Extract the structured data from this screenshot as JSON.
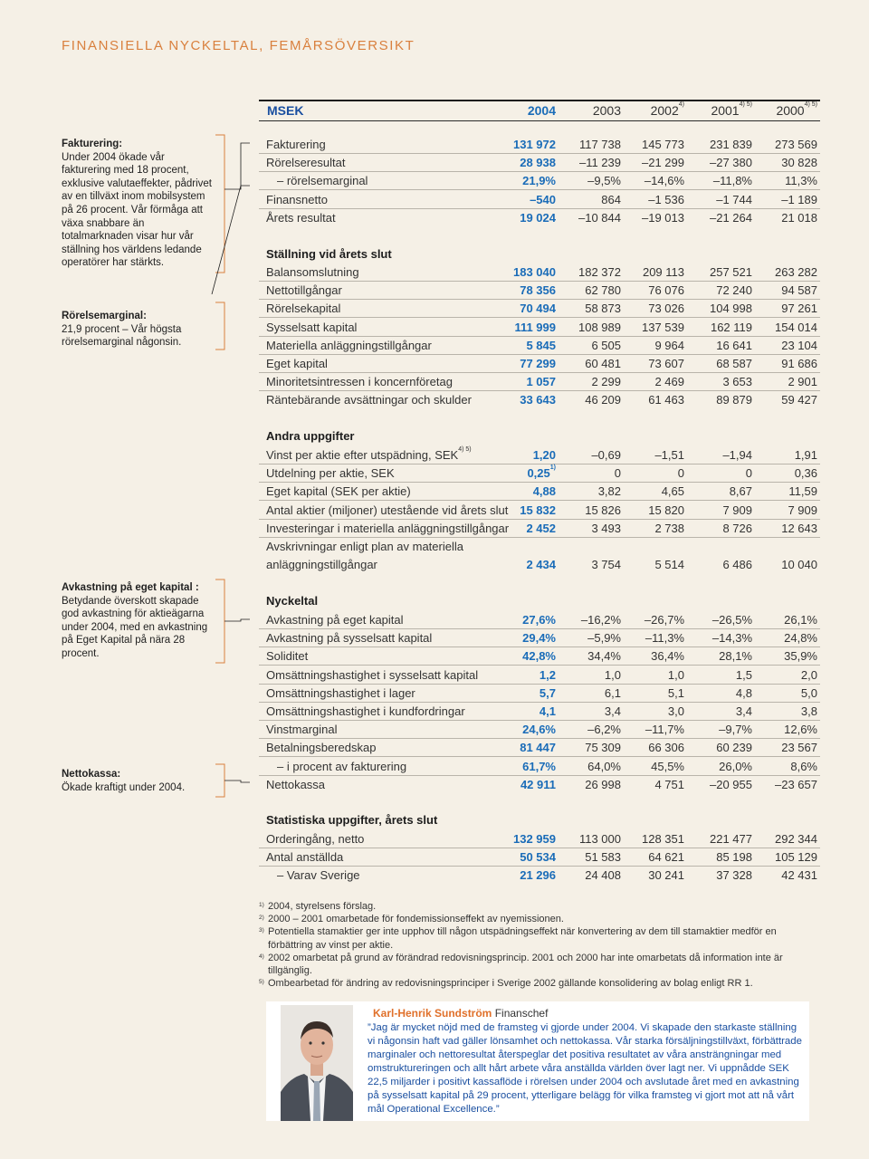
{
  "page_title": "FINANSIELLA NYCKELTAL, FEMÅRSÖVERSIKT",
  "header": {
    "msek": "MSEK",
    "years": [
      {
        "label": "2004",
        "sup": ""
      },
      {
        "label": "2003",
        "sup": ""
      },
      {
        "label": "2002",
        "sup": "4)"
      },
      {
        "label": "2001",
        "sup": "4) 5)"
      },
      {
        "label": "2000",
        "sup": "4) 5)"
      }
    ]
  },
  "side_notes": [
    {
      "heading": "Fakturering:",
      "text": "Under 2004 ökade vår fakturering med 18 procent, exklusive valutaeffekter, pådrivet av en tillväxt inom mobilsystem på 26 procent. Vår förmåga att växa snabbare än totalmarknaden visar hur vår ställning hos världens ledande operatörer har stärkts."
    },
    {
      "heading": "Rörelsemarginal:",
      "text": "21,9 procent – Vår högsta rörelsemarginal någonsin."
    },
    {
      "heading": "Avkastning på eget kapital :",
      "text": "Betydande överskott skapade god avkastning för aktieägarna under 2004, med en avkastning på Eget Kapital på nära 28 procent."
    },
    {
      "heading": "Nettokassa:",
      "text": "Ökade kraftigt under 2004."
    }
  ],
  "section_titles": {
    "stallning": "Ställning vid årets slut",
    "andra": "Andra uppgifter",
    "nyckeltal": "Nyckeltal",
    "statistik": "Statistiska uppgifter, årets slut"
  },
  "rows_result": [
    {
      "label": "Fakturering",
      "values": [
        "131 972",
        "117 738",
        "145 773",
        "231 839",
        "273 569"
      ]
    },
    {
      "label": "Rörelseresultat",
      "values": [
        "28 938",
        "–11 239",
        "–21 299",
        "–27 380",
        "30 828"
      ]
    },
    {
      "label": "– rörelsemarginal",
      "values": [
        "21,9%",
        "–9,5%",
        "–14,6%",
        "–11,8%",
        "11,3%"
      ]
    },
    {
      "label": "Finansnetto",
      "values": [
        "–540",
        "864",
        "–1 536",
        "–1 744",
        "–1 189"
      ]
    },
    {
      "label": "Årets resultat",
      "values": [
        "19 024",
        "–10 844",
        "–19 013",
        "–21 264",
        "21 018"
      ]
    }
  ],
  "rows_stallning": [
    {
      "label": "Balansomslutning",
      "values": [
        "183 040",
        "182 372",
        "209 113",
        "257 521",
        "263 282"
      ]
    },
    {
      "label": "Nettotillgångar",
      "values": [
        "78 356",
        "62 780",
        "76 076",
        "72 240",
        "94 587"
      ]
    },
    {
      "label": "Rörelsekapital",
      "values": [
        "70 494",
        "58 873",
        "73 026",
        "104 998",
        "97 261"
      ]
    },
    {
      "label": "Sysselsatt kapital",
      "values": [
        "111 999",
        "108 989",
        "137 539",
        "162 119",
        "154 014"
      ]
    },
    {
      "label": "Materiella anläggningstillgångar",
      "values": [
        "5 845",
        "6 505",
        "9 964",
        "16 641",
        "23 104"
      ]
    },
    {
      "label": "Eget kapital",
      "values": [
        "77 299",
        "60 481",
        "73 607",
        "68 587",
        "91 686"
      ]
    },
    {
      "label": "Minoritetsintressen i koncernföretag",
      "values": [
        "1 057",
        "2 299",
        "2 469",
        "3 653",
        "2 901"
      ]
    },
    {
      "label": "Räntebärande avsättningar och skulder",
      "values": [
        "33 643",
        "46 209",
        "61 463",
        "89 879",
        "59 427"
      ]
    }
  ],
  "rows_andra": [
    {
      "label": "Vinst per aktie efter utspädning, SEK",
      "label_sup": "4) 5)",
      "values": [
        "1,20",
        "–0,69",
        "–1,51",
        "–1,94",
        "1,91"
      ],
      "first_sup": ""
    },
    {
      "label": "Utdelning per aktie, SEK",
      "label_sup": "",
      "values": [
        "0,25",
        "0",
        "0",
        "0",
        "0,36"
      ],
      "first_sup": "1)"
    },
    {
      "label": "Eget kapital (SEK per aktie)",
      "label_sup": "",
      "values": [
        "4,88",
        "3,82",
        "4,65",
        "8,67",
        "11,59"
      ],
      "first_sup": ""
    },
    {
      "label": "Antal aktier (miljoner) utestående vid årets slut",
      "label_sup": "",
      "values": [
        "15 832",
        "15 826",
        "15 820",
        "7 909",
        "7 909"
      ],
      "first_sup": ""
    },
    {
      "label": "Investeringar i materiella anläggningstillgångar",
      "label_sup": "",
      "values": [
        "2 452",
        "3 493",
        "2 738",
        "8 726",
        "12 643"
      ],
      "first_sup": ""
    }
  ],
  "avskrivningar": {
    "label_line1": "Avskrivningar enligt plan av materiella",
    "label_line2": "anläggningstillgångar",
    "values": [
      "2 434",
      "3 754",
      "5 514",
      "6 486",
      "10 040"
    ]
  },
  "rows_nyckeltal": [
    {
      "label": "Avkastning på eget kapital",
      "values": [
        "27,6%",
        "–16,2%",
        "–26,7%",
        "–26,5%",
        "26,1%"
      ]
    },
    {
      "label": "Avkastning på sysselsatt kapital",
      "values": [
        "29,4%",
        "–5,9%",
        "–11,3%",
        "–14,3%",
        "24,8%"
      ]
    },
    {
      "label": "Soliditet",
      "values": [
        "42,8%",
        "34,4%",
        "36,4%",
        "28,1%",
        "35,9%"
      ]
    },
    {
      "label": "Omsättningshastighet i sysselsatt kapital",
      "values": [
        "1,2",
        "1,0",
        "1,0",
        "1,5",
        "2,0"
      ]
    },
    {
      "label": "Omsättningshastighet i lager",
      "values": [
        "5,7",
        "6,1",
        "5,1",
        "4,8",
        "5,0"
      ]
    },
    {
      "label": "Omsättningshastighet i kundfordringar",
      "values": [
        "4,1",
        "3,4",
        "3,0",
        "3,4",
        "3,8"
      ]
    },
    {
      "label": "Vinstmarginal",
      "values": [
        "24,6%",
        "–6,2%",
        "–11,7%",
        "–9,7%",
        "12,6%"
      ]
    },
    {
      "label": "Betalningsberedskap",
      "values": [
        "81 447",
        "75 309",
        "66 306",
        "60 239",
        "23 567"
      ]
    },
    {
      "label": "– i procent av fakturering",
      "values": [
        "61,7%",
        "64,0%",
        "45,5%",
        "26,0%",
        "8,6%"
      ]
    },
    {
      "label": "Nettokassa",
      "values": [
        "42 911",
        "26 998",
        "4 751",
        "–20 955",
        "–23 657"
      ]
    }
  ],
  "rows_statistik": [
    {
      "label": "Orderingång, netto",
      "values": [
        "132 959",
        "113 000",
        "128 351",
        "221 477",
        "292 344"
      ]
    },
    {
      "label": "Antal anställda",
      "values": [
        "50 534",
        "51 583",
        "64 621",
        "85 198",
        "105 129"
      ]
    },
    {
      "label": "– Varav Sverige",
      "values": [
        "21 296",
        "24 408",
        "30 241",
        "37 328",
        "42 431"
      ]
    }
  ],
  "footnotes": [
    {
      "mark": "1)",
      "text": "2004, styrelsens förslag."
    },
    {
      "mark": "2)",
      "text": "2000 – 2001 omarbetade för fondemissionseffekt av nyemissionen."
    },
    {
      "mark": "3)",
      "text": "Potentiella stamaktier ger inte upphov till någon utspädningseffekt när konvertering av dem till stamaktier medför en förbättring av vinst per aktie."
    },
    {
      "mark": "4)",
      "text": "2002 omarbetat på grund av förändrad redovisningsprincip. 2001 och 2000 har inte omarbetats då information inte är tillgänglig."
    },
    {
      "mark": "5)",
      "text": "Ombearbetad för ändring av redovisningsprinciper i Sverige 2002 gällande konsolidering av bolag enligt RR 1."
    }
  ],
  "quote": {
    "name": "Karl-Henrik Sundström",
    "role": "Finanschef",
    "text": "”Jag är mycket nöjd med de framsteg vi gjorde under 2004. Vi skapade den starkaste ställning vi någonsin haft vad gäller lönsamhet och nettokassa. Vår starka försäljningstillväxt, förbättrade marginaler och nettoresultat återspeglar det positiva resultatet av våra ansträngningar med omstruktureringen och allt hårt arbete våra anställda världen över lagt ner. Vi uppnådde SEK 22,5 miljarder i positivt kassaflöde i rörelsen under 2004 och avslutade året med en avkastning på sysselsatt kapital på 29 procent, ytterligare belägg för vilka framsteg vi gjort mot att nå vårt mål Operational Excellence.”"
  },
  "colors": {
    "accent": "#d9803e",
    "value_blue": "#1a6cb8",
    "background": "#f5f0e6"
  }
}
